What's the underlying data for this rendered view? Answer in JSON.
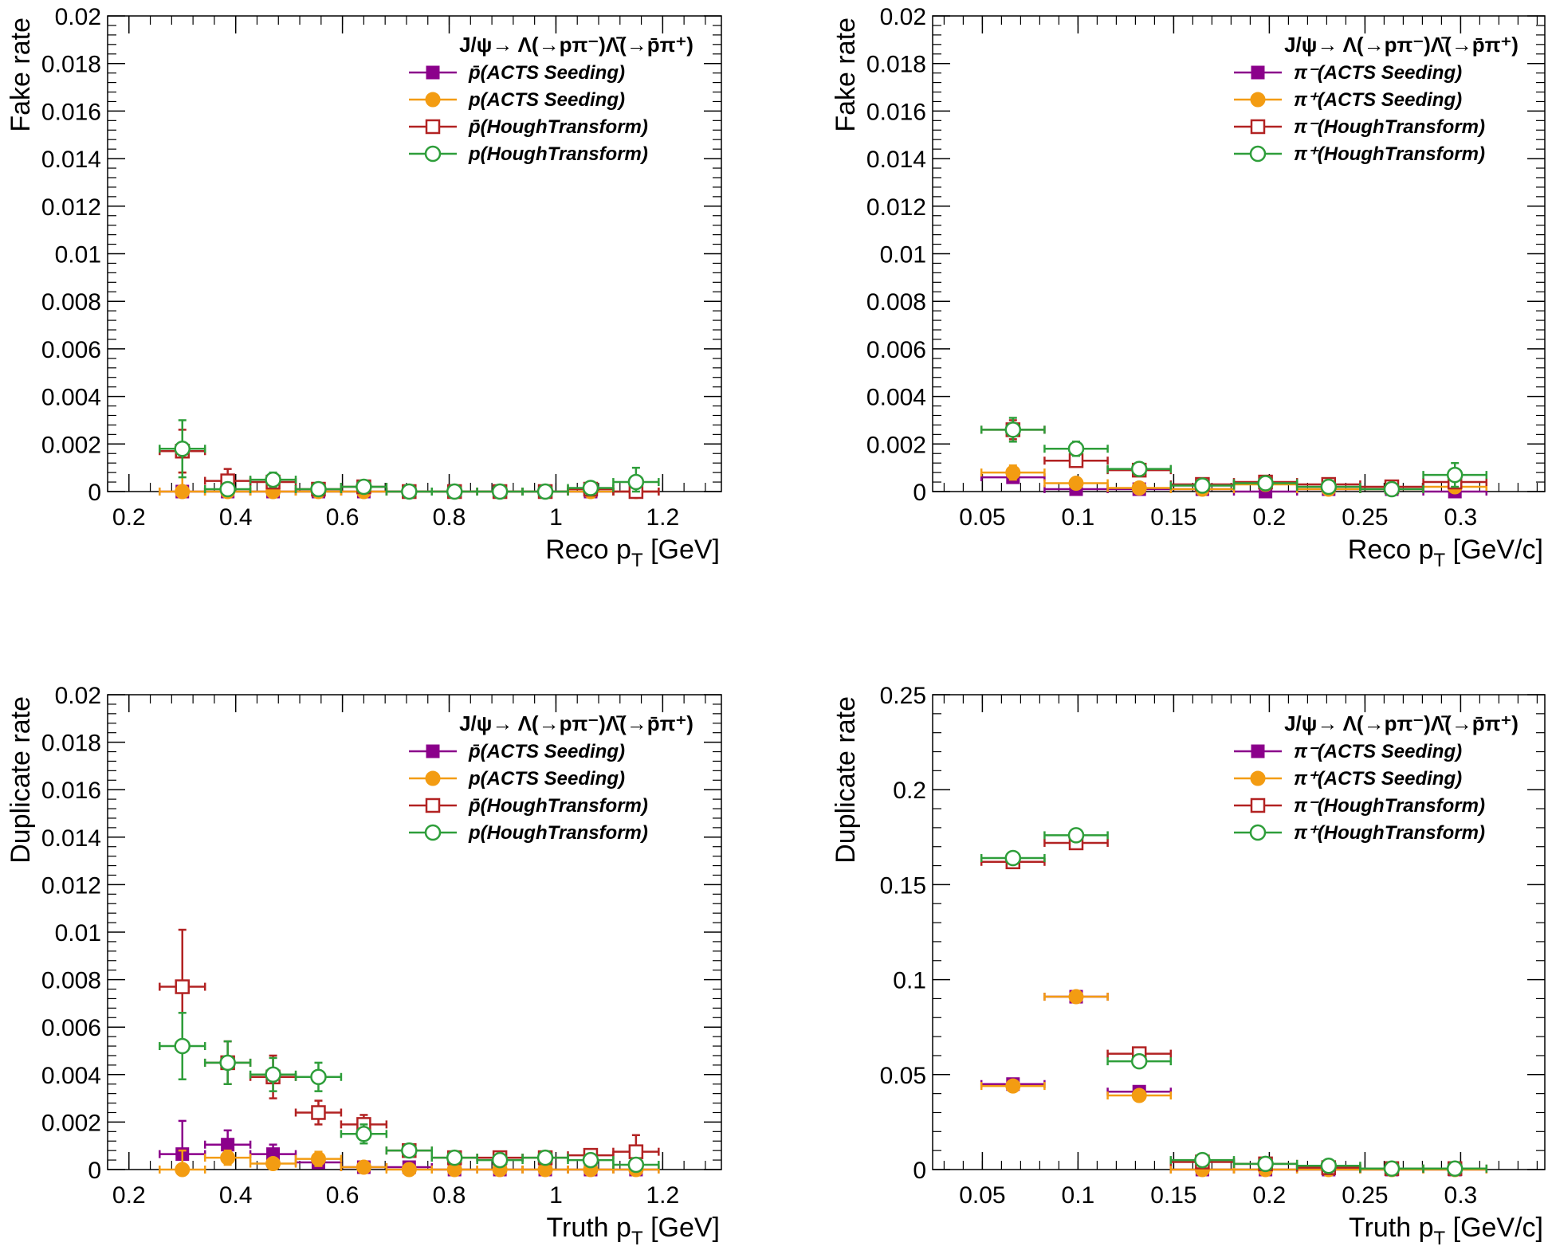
{
  "chart_data": [
    {
      "type": "scatter",
      "title": "",
      "xlabel": "Reco p_T [GeV]",
      "ylabel": "Fake rate",
      "xlim": [
        0.16,
        1.31
      ],
      "ylim": [
        0,
        0.02
      ],
      "xticks": [
        "0.2",
        "0.4",
        "0.6",
        "0.8",
        "1",
        "1.2"
      ],
      "yticks": [
        "0",
        "0.002",
        "0.004",
        "0.006",
        "0.008",
        "0.01",
        "0.012",
        "0.014",
        "0.016",
        "0.018",
        "0.02"
      ],
      "legend_title": "J/ψ→ Λ(→pπ⁻)Λ̄(→p̄π⁺)",
      "legend_position": "top-right",
      "series": [
        {
          "name": "p̄(ACTS Seeding)",
          "color": "#8b008b",
          "marker": "filled-square",
          "x": [
            0.3,
            0.385,
            0.47,
            0.555,
            0.64,
            0.725,
            0.81,
            0.895,
            0.98,
            1.065,
            1.15
          ],
          "values": [
            0,
            0,
            0,
            0,
            0,
            0,
            0,
            0,
            0,
            0,
            0
          ],
          "errors": [
            0,
            0,
            0,
            0,
            0,
            0,
            0,
            0,
            0,
            0,
            0
          ]
        },
        {
          "name": "p(ACTS Seeding)",
          "color": "#f39c12",
          "marker": "filled-circle",
          "x": [
            0.3,
            0.385,
            0.47,
            0.555,
            0.64,
            0.725,
            0.81,
            0.895,
            0.98,
            1.065,
            1.15
          ],
          "values": [
            0,
            0,
            0,
            0,
            0,
            0,
            0,
            0,
            0,
            0,
            0
          ],
          "errors": [
            0.0008,
            0.0002,
            0,
            0,
            0,
            0,
            0,
            0,
            0,
            0,
            0
          ]
        },
        {
          "name": "p̄(HoughTransform)",
          "color": "#b22222",
          "marker": "open-square",
          "x": [
            0.3,
            0.385,
            0.47,
            0.555,
            0.64,
            0.725,
            0.81,
            0.895,
            0.98,
            1.065,
            1.15
          ],
          "values": [
            0.0017,
            0.00045,
            0.0004,
            0.0001,
            0.0002,
            0,
            0,
            0,
            0,
            0.0001,
            0
          ],
          "errors": [
            0.0009,
            0.0005,
            0.0002,
            0.0001,
            0.0001,
            0,
            0,
            0,
            0,
            0.0001,
            0
          ]
        },
        {
          "name": "p(HoughTransform)",
          "color": "#2e9e3a",
          "marker": "open-circle",
          "x": [
            0.3,
            0.385,
            0.47,
            0.555,
            0.64,
            0.725,
            0.81,
            0.895,
            0.98,
            1.065,
            1.15
          ],
          "values": [
            0.0018,
            0.0001,
            0.0005,
            0.0001,
            0.0002,
            0,
            0,
            0,
            0,
            0.00015,
            0.0004
          ],
          "errors": [
            0.0012,
            0.0001,
            0.0003,
            0.0001,
            0.0001,
            0,
            0,
            0,
            0,
            0.0001,
            0.0006
          ]
        }
      ]
    },
    {
      "type": "scatter",
      "title": "",
      "xlabel": "Reco p_T [GeV/c]",
      "ylabel": "Fake rate",
      "xlim": [
        0.024,
        0.344
      ],
      "ylim": [
        0,
        0.02
      ],
      "xticks": [
        "0.05",
        "0.1",
        "0.15",
        "0.2",
        "0.25",
        "0.3"
      ],
      "yticks": [
        "0",
        "0.002",
        "0.004",
        "0.006",
        "0.008",
        "0.01",
        "0.012",
        "0.014",
        "0.016",
        "0.018",
        "0.02"
      ],
      "legend_title": "J/ψ→ Λ(→pπ⁻)Λ̄(→p̄π⁺)",
      "legend_position": "top-right",
      "series": [
        {
          "name": "π⁻(ACTS Seeding)",
          "color": "#8b008b",
          "marker": "filled-square",
          "x": [
            0.066,
            0.099,
            0.132,
            0.165,
            0.198,
            0.231,
            0.264,
            0.297
          ],
          "values": [
            0.0006,
            0.0001,
            0.0001,
            0.0001,
            0,
            0.0001,
            0.0001,
            0
          ],
          "errors": [
            0.0002,
            0.0001,
            0.0001,
            0.0001,
            0,
            0.0001,
            0.0001,
            0
          ]
        },
        {
          "name": "π⁺(ACTS Seeding)",
          "color": "#f39c12",
          "marker": "filled-circle",
          "x": [
            0.066,
            0.099,
            0.132,
            0.165,
            0.198,
            0.231,
            0.264,
            0.297
          ],
          "values": [
            0.0008,
            0.00035,
            0.00015,
            0.0001,
            0.0003,
            0.0001,
            0.0001,
            0.0002
          ],
          "errors": [
            0.0003,
            0.0001,
            0.0001,
            0.0001,
            0.0001,
            0.0001,
            0.0001,
            0.0001
          ]
        },
        {
          "name": "π⁻(HoughTransform)",
          "color": "#b22222",
          "marker": "open-square",
          "x": [
            0.066,
            0.099,
            0.132,
            0.165,
            0.198,
            0.231,
            0.264,
            0.297
          ],
          "values": [
            0.0026,
            0.0013,
            0.0009,
            0.0003,
            0.0004,
            0.0003,
            0.0002,
            0.0004
          ],
          "errors": [
            0.0004,
            0.0002,
            0.0002,
            0.0001,
            0.0001,
            0.0001,
            0.0001,
            0.0002
          ]
        },
        {
          "name": "π⁺(HoughTransform)",
          "color": "#2e9e3a",
          "marker": "open-circle",
          "x": [
            0.066,
            0.099,
            0.132,
            0.165,
            0.198,
            0.231,
            0.264,
            0.297
          ],
          "values": [
            0.0026,
            0.0018,
            0.00095,
            0.00025,
            0.00035,
            0.0002,
            0.0001,
            0.0007
          ],
          "errors": [
            0.0005,
            0.0003,
            0.0002,
            0.0001,
            0.0001,
            0.0001,
            0.0001,
            0.0005
          ]
        }
      ]
    },
    {
      "type": "scatter",
      "title": "",
      "xlabel": "Truth p_T [GeV]",
      "ylabel": "Duplicate rate",
      "xlim": [
        0.16,
        1.31
      ],
      "ylim": [
        0,
        0.02
      ],
      "xticks": [
        "0.2",
        "0.4",
        "0.6",
        "0.8",
        "1",
        "1.2"
      ],
      "yticks": [
        "0",
        "0.002",
        "0.004",
        "0.006",
        "0.008",
        "0.01",
        "0.012",
        "0.014",
        "0.016",
        "0.018",
        "0.02"
      ],
      "legend_title": "J/ψ→ Λ(→pπ⁻)Λ̄(→p̄π⁺)",
      "legend_position": "top-right",
      "series": [
        {
          "name": "p̄(ACTS Seeding)",
          "color": "#8b008b",
          "marker": "filled-square",
          "x": [
            0.3,
            0.385,
            0.47,
            0.555,
            0.64,
            0.725,
            0.81,
            0.895,
            0.98,
            1.065,
            1.15
          ],
          "values": [
            0.00065,
            0.00105,
            0.00065,
            0.0003,
            0.0001,
            0.0001,
            0,
            0,
            0,
            0,
            0
          ],
          "errors": [
            0.0014,
            0.0006,
            0.0004,
            0.0002,
            0.0001,
            0.0001,
            0,
            0,
            0,
            0,
            0
          ]
        },
        {
          "name": "p(ACTS Seeding)",
          "color": "#f39c12",
          "marker": "filled-circle",
          "x": [
            0.3,
            0.385,
            0.47,
            0.555,
            0.64,
            0.725,
            0.81,
            0.895,
            0.98,
            1.065,
            1.15
          ],
          "values": [
            0,
            0.0005,
            0.00025,
            0.00045,
            0.0001,
            0,
            0,
            0,
            0,
            0,
            0
          ],
          "errors": [
            0.0008,
            0.0003,
            0.0002,
            0.0003,
            0.0001,
            0,
            0,
            0,
            0,
            0,
            0
          ]
        },
        {
          "name": "p̄(HoughTransform)",
          "color": "#b22222",
          "marker": "open-square",
          "x": [
            0.3,
            0.385,
            0.47,
            0.555,
            0.64,
            0.725,
            0.81,
            0.895,
            0.98,
            1.065,
            1.15
          ],
          "values": [
            0.0077,
            0.0045,
            0.0039,
            0.0024,
            0.0019,
            0.0008,
            0.0005,
            0.0005,
            0.0005,
            0.0006,
            0.00075
          ],
          "errors": [
            0.0024,
            0.0009,
            0.0009,
            0.0005,
            0.0004,
            0.0002,
            0.0001,
            0.0002,
            0.0002,
            0.0002,
            0.0007
          ]
        },
        {
          "name": "p(HoughTransform)",
          "color": "#2e9e3a",
          "marker": "open-circle",
          "x": [
            0.3,
            0.385,
            0.47,
            0.555,
            0.64,
            0.725,
            0.81,
            0.895,
            0.98,
            1.065,
            1.15
          ],
          "values": [
            0.0052,
            0.0045,
            0.004,
            0.0039,
            0.0015,
            0.0008,
            0.0005,
            0.0004,
            0.0005,
            0.0004,
            0.0002
          ],
          "errors": [
            0.0014,
            0.0009,
            0.0007,
            0.0006,
            0.0004,
            0.0002,
            0.0001,
            0.0001,
            0.0002,
            0.0002,
            0.0002
          ]
        }
      ]
    },
    {
      "type": "scatter",
      "title": "",
      "xlabel": "Truth p_T [GeV/c]",
      "ylabel": "Duplicate rate",
      "xlim": [
        0.024,
        0.344
      ],
      "ylim": [
        0,
        0.25
      ],
      "xticks": [
        "0.05",
        "0.1",
        "0.15",
        "0.2",
        "0.25",
        "0.3"
      ],
      "yticks": [
        "0",
        "0.05",
        "0.1",
        "0.15",
        "0.2",
        "0.25"
      ],
      "legend_title": "J/ψ→ Λ(→pπ⁻)Λ̄(→p̄π⁺)",
      "legend_position": "top-right",
      "series": [
        {
          "name": "π⁻(ACTS Seeding)",
          "color": "#8b008b",
          "marker": "filled-square",
          "x": [
            0.066,
            0.099,
            0.132,
            0.165,
            0.198,
            0.231,
            0.264,
            0.297
          ],
          "values": [
            0.045,
            0.091,
            0.041,
            0,
            0,
            0,
            0,
            0
          ],
          "errors": [
            0.001,
            0.001,
            0.001,
            0,
            0,
            0,
            0,
            0
          ]
        },
        {
          "name": "π⁺(ACTS Seeding)",
          "color": "#f39c12",
          "marker": "filled-circle",
          "x": [
            0.066,
            0.099,
            0.132,
            0.165,
            0.198,
            0.231,
            0.264,
            0.297
          ],
          "values": [
            0.044,
            0.091,
            0.039,
            0,
            0,
            0,
            0,
            0
          ],
          "errors": [
            0.001,
            0.001,
            0.001,
            0,
            0,
            0,
            0,
            0
          ]
        },
        {
          "name": "π⁻(HoughTransform)",
          "color": "#b22222",
          "marker": "open-square",
          "x": [
            0.066,
            0.099,
            0.132,
            0.165,
            0.198,
            0.231,
            0.264,
            0.297
          ],
          "values": [
            0.162,
            0.172,
            0.061,
            0.004,
            0.003,
            0.001,
            0.0005,
            0.0005
          ],
          "errors": [
            0.002,
            0.002,
            0.002,
            0.001,
            0.001,
            0.001,
            0.0005,
            0.0005
          ]
        },
        {
          "name": "π⁺(HoughTransform)",
          "color": "#2e9e3a",
          "marker": "open-circle",
          "x": [
            0.066,
            0.099,
            0.132,
            0.165,
            0.198,
            0.231,
            0.264,
            0.297
          ],
          "values": [
            0.164,
            0.176,
            0.057,
            0.005,
            0.003,
            0.002,
            0.0005,
            0.0005
          ],
          "errors": [
            0.002,
            0.002,
            0.002,
            0.001,
            0.001,
            0.001,
            0.0005,
            0.0005
          ]
        }
      ]
    }
  ]
}
